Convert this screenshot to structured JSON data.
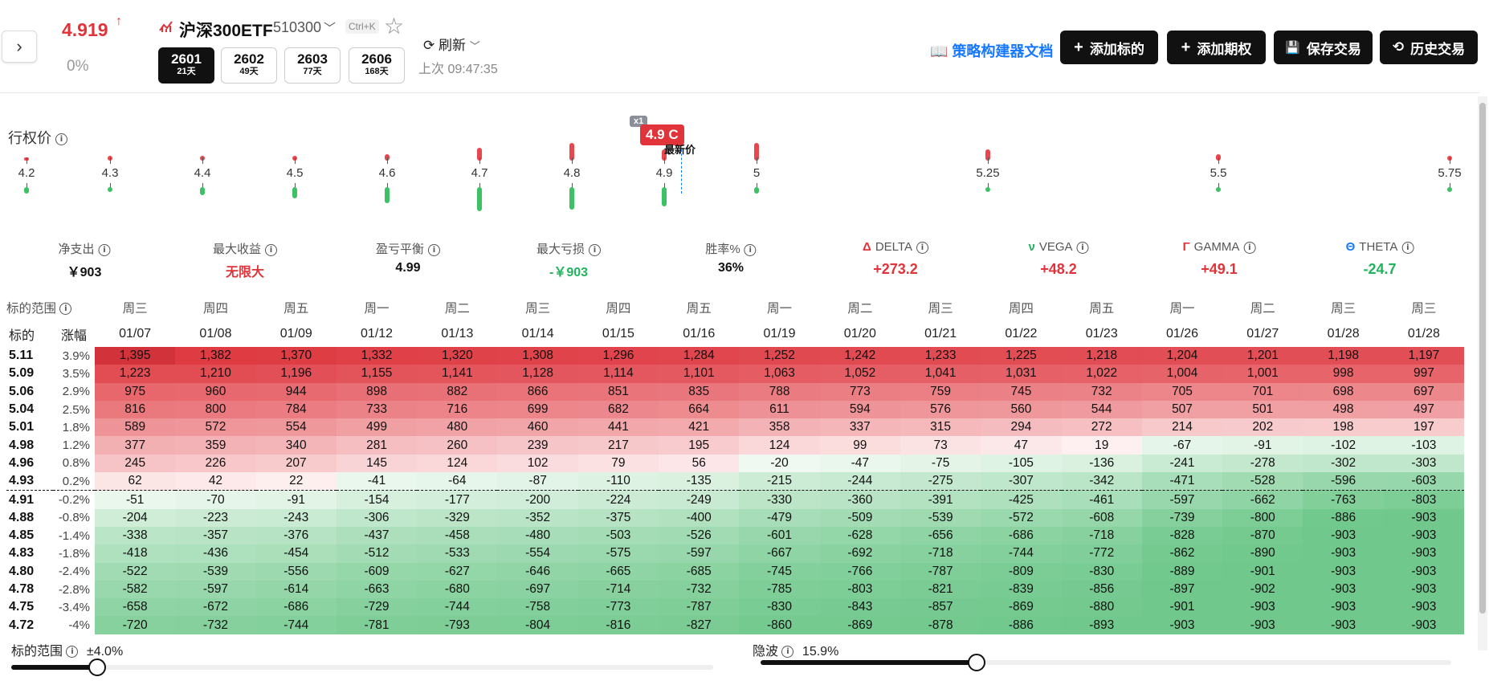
{
  "header": {
    "price": "4.919",
    "price_arrow": "↑",
    "change_pct": "0%",
    "symbol_name": "沪深300ETF",
    "symbol_code": "510300",
    "shortcut": "Ctrl+K",
    "expiries": [
      {
        "code": "2601",
        "days": "21天",
        "active": true
      },
      {
        "code": "2602",
        "days": "49天",
        "active": false
      },
      {
        "code": "2603",
        "days": "77天",
        "active": false
      },
      {
        "code": "2606",
        "days": "168天",
        "active": false
      }
    ],
    "refresh_label": "刷新",
    "last_update": "上次 09:47:35",
    "doc_link": "策略构建器文档",
    "buttons": {
      "add_underlying": "添加标的",
      "add_option": "添加期权",
      "save_trade": "保存交易",
      "history_trade": "历史交易"
    }
  },
  "strikes": {
    "title": "行权价",
    "labels": [
      "4.2",
      "4.3",
      "4.4",
      "4.5",
      "4.6",
      "4.7",
      "4.8",
      "4.9",
      "5",
      "5.25",
      "5.5",
      "5.75"
    ],
    "position_tag": "4.9 C",
    "multiplier": "x1",
    "latest_label": "最新价"
  },
  "metrics": [
    {
      "label": "净支出",
      "value": "￥903",
      "color": "#111"
    },
    {
      "label": "最大收益",
      "value": "无限大",
      "color": "#e0343a"
    },
    {
      "label": "盈亏平衡",
      "value": "4.99",
      "color": "#111"
    },
    {
      "label": "最大亏损",
      "value": "-￥903",
      "color": "#22b35e"
    },
    {
      "label": "胜率%",
      "value": "36%",
      "color": "#111"
    },
    {
      "label": "DELTA",
      "greek": "Δ",
      "greek_color": "#e0343a",
      "value": "+273.2",
      "color": "#e0343a"
    },
    {
      "label": "VEGA",
      "greek": "ν",
      "greek_color": "#22b35e",
      "value": "+48.2",
      "color": "#e0343a"
    },
    {
      "label": "GAMMA",
      "greek": "Γ",
      "greek_color": "#e0343a",
      "value": "+49.1",
      "color": "#e0343a"
    },
    {
      "label": "THETA",
      "greek": "Θ",
      "greek_color": "#1677ff",
      "value": "-24.7",
      "color": "#22b35e"
    }
  ],
  "table": {
    "range_header": "标的范围",
    "underlying_header": "标的",
    "change_header": "涨幅",
    "weekdays": [
      "周三",
      "周四",
      "周五",
      "周一",
      "周二",
      "周三",
      "周四",
      "周五",
      "周一",
      "周二",
      "周三",
      "周四",
      "周五",
      "周一",
      "周二",
      "周三",
      "周三"
    ],
    "dates": [
      "01/07",
      "01/08",
      "01/09",
      "01/12",
      "01/13",
      "01/14",
      "01/15",
      "01/16",
      "01/19",
      "01/20",
      "01/21",
      "01/22",
      "01/23",
      "01/26",
      "01/27",
      "01/28",
      "01/28"
    ],
    "rows": [
      {
        "price": "5.11",
        "chg": "3.9%",
        "vals": [
          "1,395",
          "1,382",
          "1,370",
          "1,332",
          "1,320",
          "1,308",
          "1,296",
          "1,284",
          "1,252",
          "1,242",
          "1,233",
          "1,225",
          "1,218",
          "1,204",
          "1,201",
          "1,198",
          "1,197"
        ]
      },
      {
        "price": "5.09",
        "chg": "3.5%",
        "vals": [
          "1,223",
          "1,210",
          "1,196",
          "1,155",
          "1,141",
          "1,128",
          "1,114",
          "1,101",
          "1,063",
          "1,052",
          "1,041",
          "1,031",
          "1,022",
          "1,004",
          "1,001",
          "998",
          "997"
        ]
      },
      {
        "price": "5.06",
        "chg": "2.9%",
        "vals": [
          "975",
          "960",
          "944",
          "898",
          "882",
          "866",
          "851",
          "835",
          "788",
          "773",
          "759",
          "745",
          "732",
          "705",
          "701",
          "698",
          "697"
        ]
      },
      {
        "price": "5.04",
        "chg": "2.5%",
        "vals": [
          "816",
          "800",
          "784",
          "733",
          "716",
          "699",
          "682",
          "664",
          "611",
          "594",
          "576",
          "560",
          "544",
          "507",
          "501",
          "498",
          "497"
        ]
      },
      {
        "price": "5.01",
        "chg": "1.8%",
        "vals": [
          "589",
          "572",
          "554",
          "499",
          "480",
          "460",
          "441",
          "421",
          "358",
          "337",
          "315",
          "294",
          "272",
          "214",
          "202",
          "198",
          "197"
        ]
      },
      {
        "price": "4.98",
        "chg": "1.2%",
        "vals": [
          "377",
          "359",
          "340",
          "281",
          "260",
          "239",
          "217",
          "195",
          "124",
          "99",
          "73",
          "47",
          "19",
          "-67",
          "-91",
          "-102",
          "-103"
        ]
      },
      {
        "price": "4.96",
        "chg": "0.8%",
        "vals": [
          "245",
          "226",
          "207",
          "145",
          "124",
          "102",
          "79",
          "56",
          "-20",
          "-47",
          "-75",
          "-105",
          "-136",
          "-241",
          "-278",
          "-302",
          "-303"
        ]
      },
      {
        "price": "4.93",
        "chg": "0.2%",
        "vals": [
          "62",
          "42",
          "22",
          "-41",
          "-64",
          "-87",
          "-110",
          "-135",
          "-215",
          "-244",
          "-275",
          "-307",
          "-342",
          "-471",
          "-528",
          "-596",
          "-603"
        ]
      },
      {
        "price": "4.91",
        "chg": "-0.2%",
        "vals": [
          "-51",
          "-70",
          "-91",
          "-154",
          "-177",
          "-200",
          "-224",
          "-249",
          "-330",
          "-360",
          "-391",
          "-425",
          "-461",
          "-597",
          "-662",
          "-763",
          "-803"
        ]
      },
      {
        "price": "4.88",
        "chg": "-0.8%",
        "vals": [
          "-204",
          "-223",
          "-243",
          "-306",
          "-329",
          "-352",
          "-375",
          "-400",
          "-479",
          "-509",
          "-539",
          "-572",
          "-608",
          "-739",
          "-800",
          "-886",
          "-903"
        ]
      },
      {
        "price": "4.85",
        "chg": "-1.4%",
        "vals": [
          "-338",
          "-357",
          "-376",
          "-437",
          "-458",
          "-480",
          "-503",
          "-526",
          "-601",
          "-628",
          "-656",
          "-686",
          "-718",
          "-828",
          "-870",
          "-903",
          "-903"
        ]
      },
      {
        "price": "4.83",
        "chg": "-1.8%",
        "vals": [
          "-418",
          "-436",
          "-454",
          "-512",
          "-533",
          "-554",
          "-575",
          "-597",
          "-667",
          "-692",
          "-718",
          "-744",
          "-772",
          "-862",
          "-890",
          "-903",
          "-903"
        ]
      },
      {
        "price": "4.80",
        "chg": "-2.4%",
        "vals": [
          "-522",
          "-539",
          "-556",
          "-609",
          "-627",
          "-646",
          "-665",
          "-685",
          "-745",
          "-766",
          "-787",
          "-809",
          "-830",
          "-889",
          "-901",
          "-903",
          "-903"
        ]
      },
      {
        "price": "4.78",
        "chg": "-2.8%",
        "vals": [
          "-582",
          "-597",
          "-614",
          "-663",
          "-680",
          "-697",
          "-714",
          "-732",
          "-785",
          "-803",
          "-821",
          "-839",
          "-856",
          "-897",
          "-902",
          "-903",
          "-903"
        ]
      },
      {
        "price": "4.75",
        "chg": "-3.4%",
        "vals": [
          "-658",
          "-672",
          "-686",
          "-729",
          "-744",
          "-758",
          "-773",
          "-787",
          "-830",
          "-843",
          "-857",
          "-869",
          "-880",
          "-901",
          "-903",
          "-903",
          "-903"
        ]
      },
      {
        "price": "4.72",
        "chg": "-4%",
        "vals": [
          "-720",
          "-732",
          "-744",
          "-781",
          "-793",
          "-804",
          "-816",
          "-827",
          "-860",
          "-869",
          "-878",
          "-886",
          "-893",
          "-903",
          "-903",
          "-903",
          "-903"
        ]
      }
    ]
  },
  "sliders": {
    "range_label": "标的范围",
    "range_value": "±4.0%",
    "range_fraction": 0.12,
    "iv_label": "隐波",
    "iv_value": "15.9%",
    "iv_fraction": 0.31
  }
}
